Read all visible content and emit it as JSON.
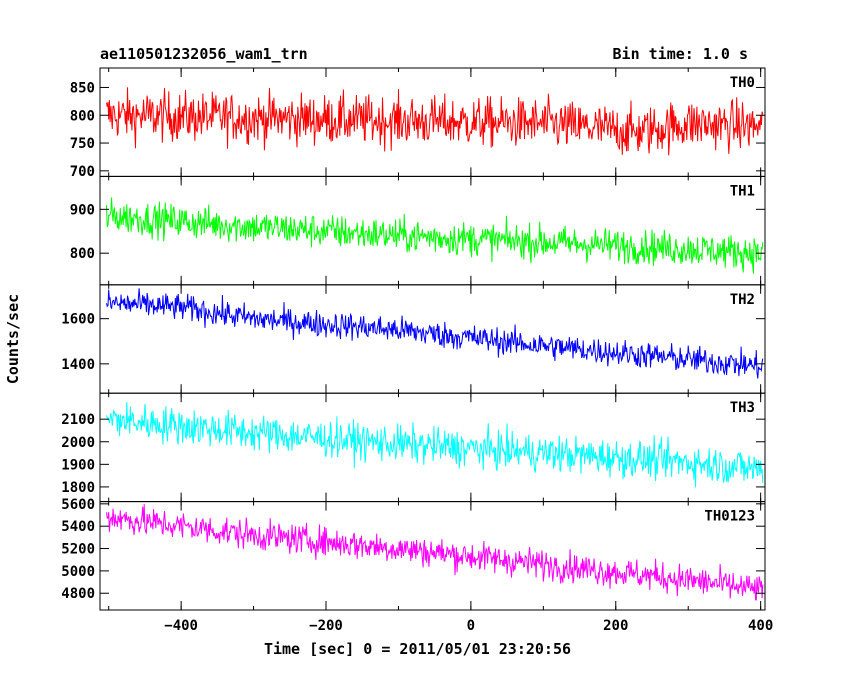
{
  "chart_data": {
    "type": "line",
    "title": "ae110501232056_wam1_trn",
    "subtitle": "Bin time: 1.0 s",
    "xlabel": "Time [sec] 0 = 2011/05/01 23:20:56",
    "ylabel": "Counts/sec",
    "xlim": [
      -512,
      406
    ],
    "xticks": [
      -400,
      -200,
      0,
      200,
      400
    ],
    "grid": false,
    "panels": [
      {
        "name": "TH0",
        "color": "#ff0000",
        "ylim": [
          690,
          885
        ],
        "yticks": [
          700,
          750,
          800,
          850
        ],
        "trend": {
          "x": [
            -500,
            -300,
            -100,
            100,
            230,
            300,
            400
          ],
          "y": [
            800,
            795,
            790,
            785,
            770,
            785,
            780
          ]
        },
        "noise": 30
      },
      {
        "name": "TH1",
        "color": "#00ff00",
        "ylim": [
          728,
          975
        ],
        "yticks": [
          800,
          900
        ],
        "trend": {
          "x": [
            -500,
            -300,
            -100,
            100,
            300,
            400
          ],
          "y": [
            885,
            860,
            840,
            825,
            810,
            800
          ]
        },
        "noise": 26
      },
      {
        "name": "TH2",
        "color": "#0000ff",
        "ylim": [
          1270,
          1750
        ],
        "yticks": [
          1400,
          1600
        ],
        "trend": {
          "x": [
            -500,
            -400,
            -300,
            -100,
            100,
            300,
            400
          ],
          "y": [
            1670,
            1650,
            1600,
            1550,
            1480,
            1420,
            1390
          ]
        },
        "noise": 40
      },
      {
        "name": "TH3",
        "color": "#00ffff",
        "ylim": [
          1735,
          2215
        ],
        "yticks": [
          1800,
          1900,
          2000,
          2100
        ],
        "trend": {
          "x": [
            -500,
            -300,
            -100,
            100,
            300,
            400
          ],
          "y": [
            2100,
            2040,
            1990,
            1950,
            1910,
            1880
          ]
        },
        "noise": 55
      },
      {
        "name": "TH0123",
        "color": "#ff00ff",
        "ylim": [
          4650,
          5620
        ],
        "yticks": [
          4800,
          5000,
          5200,
          5400,
          5600
        ],
        "trend": {
          "x": [
            -500,
            -300,
            -100,
            100,
            300,
            400
          ],
          "y": [
            5480,
            5320,
            5200,
            5060,
            4920,
            4830
          ]
        },
        "noise": 90
      }
    ]
  }
}
